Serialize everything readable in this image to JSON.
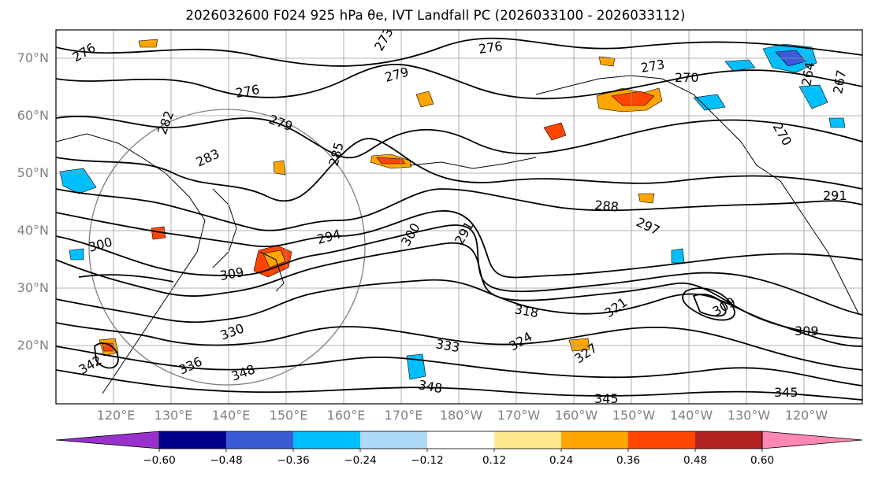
{
  "title": "2026032600 F024 925 hPa θe, IVT Landfall PC (2026033100 - 2026033112)",
  "map": {
    "lat_labels": [
      "70°N",
      "60°N",
      "50°N",
      "40°N",
      "30°N",
      "20°N"
    ],
    "lon_labels": [
      "120°E",
      "130°E",
      "140°E",
      "150°E",
      "160°E",
      "170°E",
      "180°W",
      "170°W",
      "160°W",
      "150°W",
      "140°W",
      "130°W",
      "120°W"
    ],
    "contour_labels": [
      "276",
      "276",
      "273",
      "279",
      "270",
      "276",
      "279",
      "273",
      "282",
      "285",
      "283",
      "288",
      "297",
      "291",
      "294",
      "300",
      "309",
      "318",
      "321",
      "330",
      "333",
      "324",
      "327",
      "336",
      "342",
      "348",
      "348",
      "345",
      "345",
      "309",
      "270",
      "264",
      "267",
      "291",
      "300",
      "309"
    ],
    "anomaly_colors": {
      "positive_weak": "#ffe88c",
      "positive_mid": "#ffa500",
      "positive_strong": "#ff4500",
      "negative_mid": "#00bfff",
      "negative_weak": "#aadff8",
      "negative_strong": "#3b5bdb"
    }
  },
  "colorbar": {
    "colors": [
      "#9932cc",
      "#00008b",
      "#3b5bd5",
      "#00bfff",
      "#add8f6",
      "#ffffff",
      "#ffe88c",
      "#ffa500",
      "#ff4500",
      "#b22222",
      "#ff87b4"
    ],
    "tick_labels": [
      "−0.60",
      "−0.48",
      "−0.36",
      "−0.24",
      "−0.12",
      "0.12",
      "0.24",
      "0.36",
      "0.48",
      "0.60"
    ]
  }
}
